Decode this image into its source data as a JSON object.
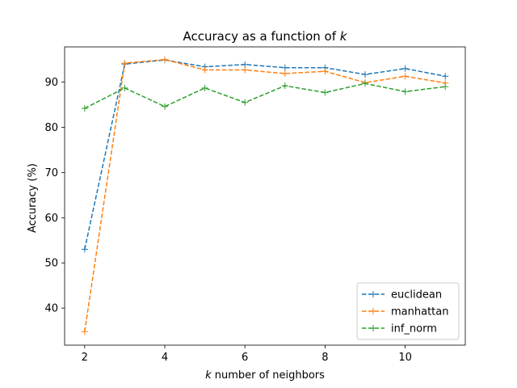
{
  "chart_data": {
    "type": "line",
    "title_prefix": "Accuracy as a function of",
    "title_var": "k",
    "xlabel_var": "k",
    "xlabel_rest": "number of neighbors",
    "ylabel": "Accuracy (%)",
    "xlim": [
      1.5,
      11.5
    ],
    "ylim": [
      31.8,
      97.8
    ],
    "xticks": [
      2,
      4,
      6,
      8,
      10
    ],
    "yticks": [
      40,
      50,
      60,
      70,
      80,
      90
    ],
    "x": [
      2,
      3,
      4,
      5,
      6,
      7,
      8,
      9,
      10,
      11
    ],
    "series": [
      {
        "name": "euclidean",
        "color": "#1f77b4",
        "values": [
          53.0,
          94.0,
          94.9,
          93.4,
          93.9,
          93.2,
          93.2,
          91.7,
          93.0,
          91.3
        ]
      },
      {
        "name": "manhattan",
        "color": "#ff7f0e",
        "values": [
          34.8,
          94.2,
          95.0,
          92.7,
          92.7,
          91.9,
          92.4,
          89.9,
          91.3,
          89.8
        ]
      },
      {
        "name": "inf_norm",
        "color": "#2ca02c",
        "values": [
          84.2,
          88.7,
          84.6,
          88.7,
          85.5,
          89.2,
          87.7,
          89.7,
          87.9,
          89.0
        ]
      }
    ],
    "grid": false,
    "legend_position": "lower-right",
    "line_style": "dashed",
    "marker": "plus"
  }
}
